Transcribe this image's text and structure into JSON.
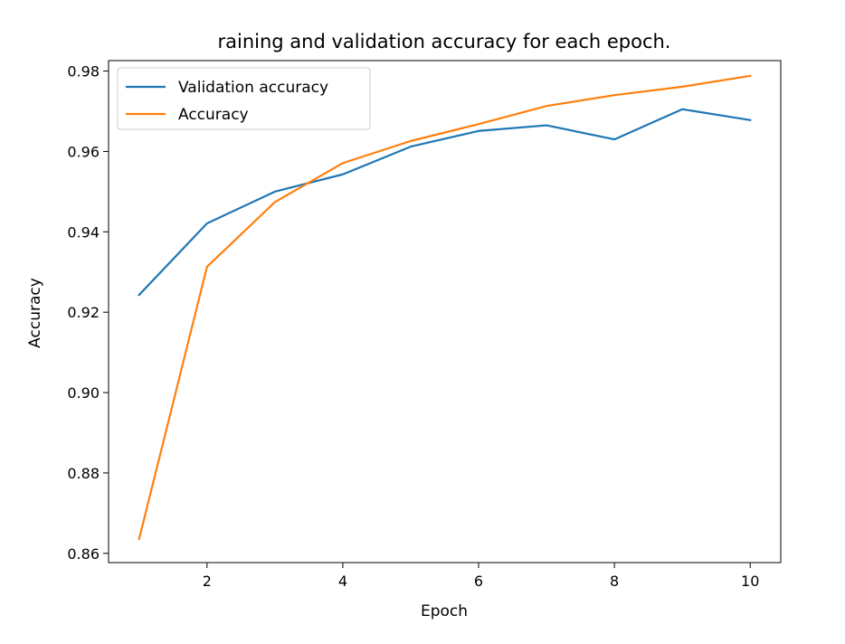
{
  "chart_data": {
    "type": "line",
    "title": "raining and validation accuracy for each epoch.",
    "xlabel": "Epoch",
    "ylabel": "Accuracy",
    "x": [
      1,
      2,
      3,
      4,
      5,
      6,
      7,
      8,
      9,
      10
    ],
    "x_ticks": [
      2,
      4,
      6,
      8,
      10
    ],
    "x_tick_labels": [
      "2",
      "4",
      "6",
      "8",
      "10"
    ],
    "y_ticks": [
      0.86,
      0.88,
      0.9,
      0.92,
      0.94,
      0.96,
      0.98
    ],
    "y_tick_labels": [
      "0.86",
      "0.88",
      "0.90",
      "0.92",
      "0.94",
      "0.96",
      "0.98"
    ],
    "xlim": [
      0.55,
      10.45
    ],
    "ylim": [
      0.8577,
      0.9826
    ],
    "grid": false,
    "legend_position": "top-left",
    "series": [
      {
        "name": "Validation accuracy",
        "color": "#1f77b4",
        "values": [
          0.9243,
          0.9421,
          0.95,
          0.9543,
          0.9612,
          0.9651,
          0.9665,
          0.963,
          0.9705,
          0.9678
        ]
      },
      {
        "name": "Accuracy",
        "color": "#ff7f0e",
        "values": [
          0.8636,
          0.9313,
          0.9474,
          0.9571,
          0.9626,
          0.9668,
          0.9713,
          0.974,
          0.9761,
          0.9788
        ]
      }
    ]
  }
}
